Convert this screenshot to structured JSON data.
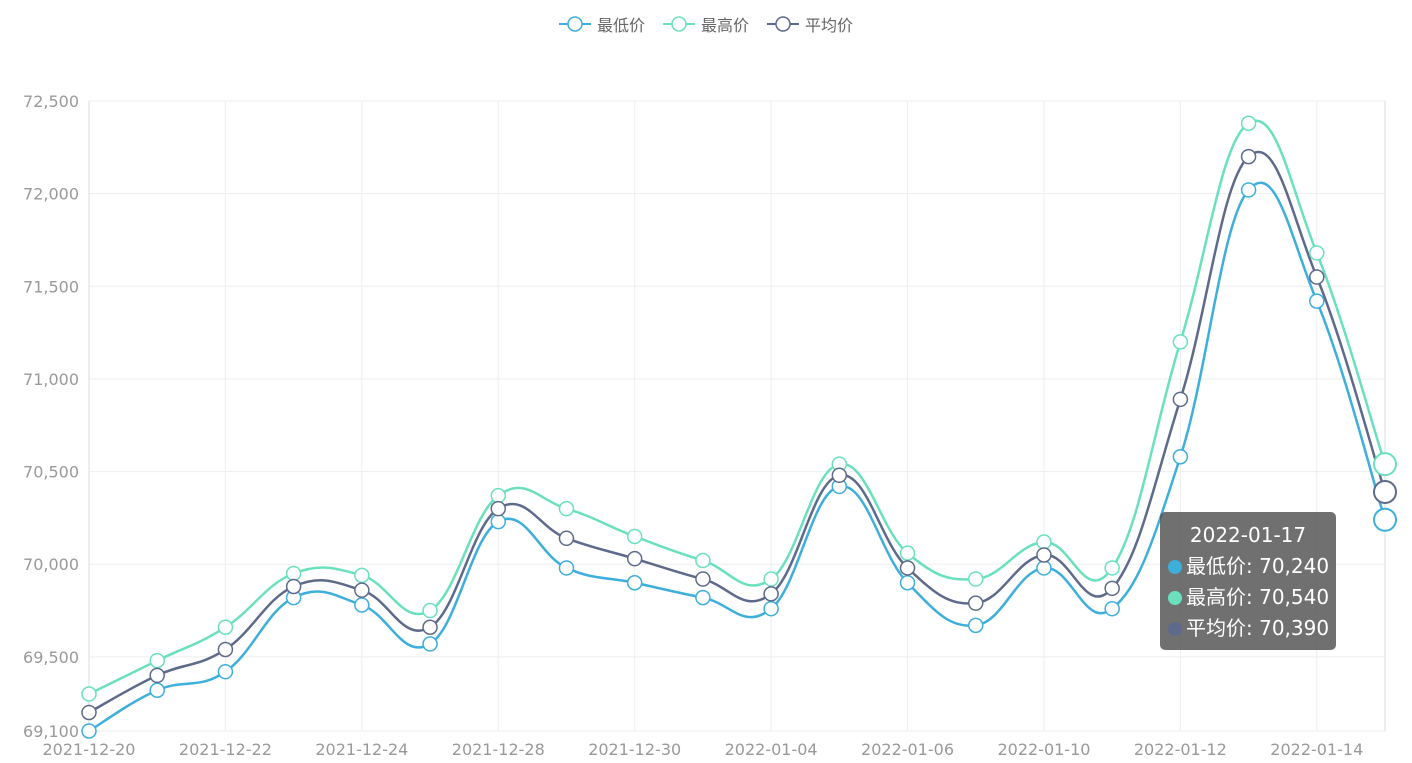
{
  "legend": {
    "items": [
      {
        "label": "最低价",
        "color": "#3eaedb"
      },
      {
        "label": "最高价",
        "color": "#6ae0bd"
      },
      {
        "label": "平均价",
        "color": "#5e6a8c"
      }
    ]
  },
  "tooltip": {
    "title": "2022-01-17",
    "rows": [
      {
        "text": "最低价: 70,240",
        "color": "#3eaedb"
      },
      {
        "text": "最高价: 70,540",
        "color": "#6ae0bd"
      },
      {
        "text": "平均价: 70,390",
        "color": "#5e6a8c"
      }
    ]
  },
  "chart_data": {
    "type": "line",
    "title": "",
    "xlabel": "",
    "ylabel": "",
    "ylim": [
      69100,
      72500
    ],
    "y_ticks": [
      "69,100",
      "69,500",
      "70,000",
      "70,500",
      "71,000",
      "71,500",
      "72,000",
      "72,500"
    ],
    "y_tick_values": [
      69100,
      69500,
      70000,
      70500,
      71000,
      71500,
      72000,
      72500
    ],
    "x_tick_labels": [
      "2021-12-20",
      "2021-12-22",
      "2021-12-24",
      "2021-12-28",
      "2021-12-30",
      "2022-01-04",
      "2022-01-06",
      "2022-01-10",
      "2022-01-12",
      "2022-01-14"
    ],
    "categories": [
      "2021-12-20",
      "2021-12-21",
      "2021-12-22",
      "2021-12-23",
      "2021-12-24",
      "2021-12-27",
      "2021-12-28",
      "2021-12-29",
      "2021-12-30",
      "2021-12-31",
      "2022-01-04",
      "2022-01-05",
      "2022-01-06",
      "2022-01-07",
      "2022-01-10",
      "2022-01-11",
      "2022-01-12",
      "2022-01-13",
      "2022-01-14",
      "2022-01-17"
    ],
    "series": [
      {
        "name": "最低价",
        "color": "#3eaedb",
        "values": [
          69100,
          69320,
          69420,
          69820,
          69780,
          69570,
          70230,
          69980,
          69900,
          69820,
          69760,
          70420,
          69900,
          69670,
          69980,
          69760,
          70580,
          72020,
          71420,
          70240
        ]
      },
      {
        "name": "最高价",
        "color": "#6ae0bd",
        "values": [
          69300,
          69480,
          69660,
          69950,
          69940,
          69750,
          70370,
          70300,
          70150,
          70020,
          69920,
          70540,
          70060,
          69920,
          70120,
          69980,
          71200,
          72380,
          71680,
          70540
        ]
      },
      {
        "name": "平均价",
        "color": "#5e6a8c",
        "values": [
          69200,
          69400,
          69540,
          69880,
          69860,
          69660,
          70300,
          70140,
          70030,
          69920,
          69840,
          70480,
          69980,
          69790,
          70050,
          69870,
          70890,
          72200,
          71550,
          70390
        ]
      }
    ],
    "highlight_index": 19,
    "grid": true,
    "legend_position": "top-center"
  }
}
